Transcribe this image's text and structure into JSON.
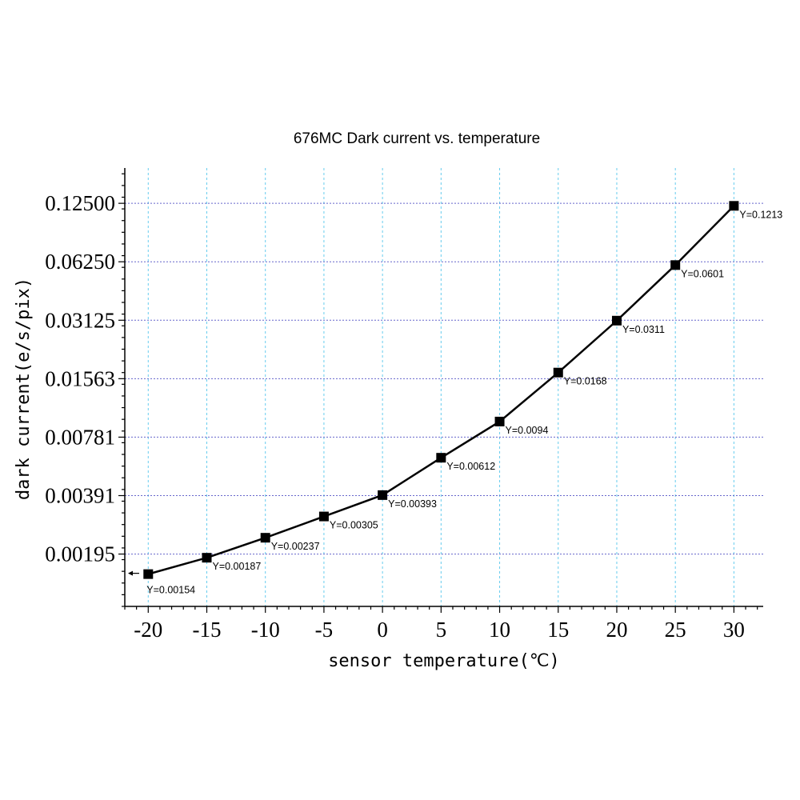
{
  "chart_data": {
    "type": "line",
    "title": "676MC Dark current vs. temperature",
    "xlabel": "sensor temperature(℃)",
    "ylabel": "dark current(e/s/pix)",
    "y_scale": "log2",
    "grid": true,
    "x_ticks": [
      "-20",
      "-15",
      "-10",
      "-5",
      "0",
      "5",
      "10",
      "15",
      "20",
      "25",
      "30"
    ],
    "y_ticks": [
      "0.12500",
      "0.06250",
      "0.03125",
      "0.01563",
      "0.00781",
      "0.00391",
      "0.00195"
    ],
    "y_tick_values": [
      0.125,
      0.0625,
      0.03125,
      0.015625,
      0.0078125,
      0.00390625,
      0.001953125
    ],
    "xlim": [
      -22,
      32.5
    ],
    "ylim": [
      0.00105,
      0.19
    ],
    "series": [
      {
        "x": [
          -20,
          -15,
          -10,
          -5,
          0,
          5,
          10,
          15,
          20,
          25,
          30
        ],
        "y": [
          0.00154,
          0.00187,
          0.00237,
          0.00305,
          0.00393,
          0.00612,
          0.0094,
          0.0168,
          0.0311,
          0.0601,
          0.1213
        ],
        "labels": [
          "Y=0.00154",
          "Y=0.00187",
          "Y=0.00237",
          "Y=0.00305",
          "Y=0.00393",
          "Y=0.00612",
          "Y=0.0094",
          "Y=0.0168",
          "Y=0.0311",
          "Y=0.0601",
          "Y=0.1213"
        ]
      }
    ]
  }
}
